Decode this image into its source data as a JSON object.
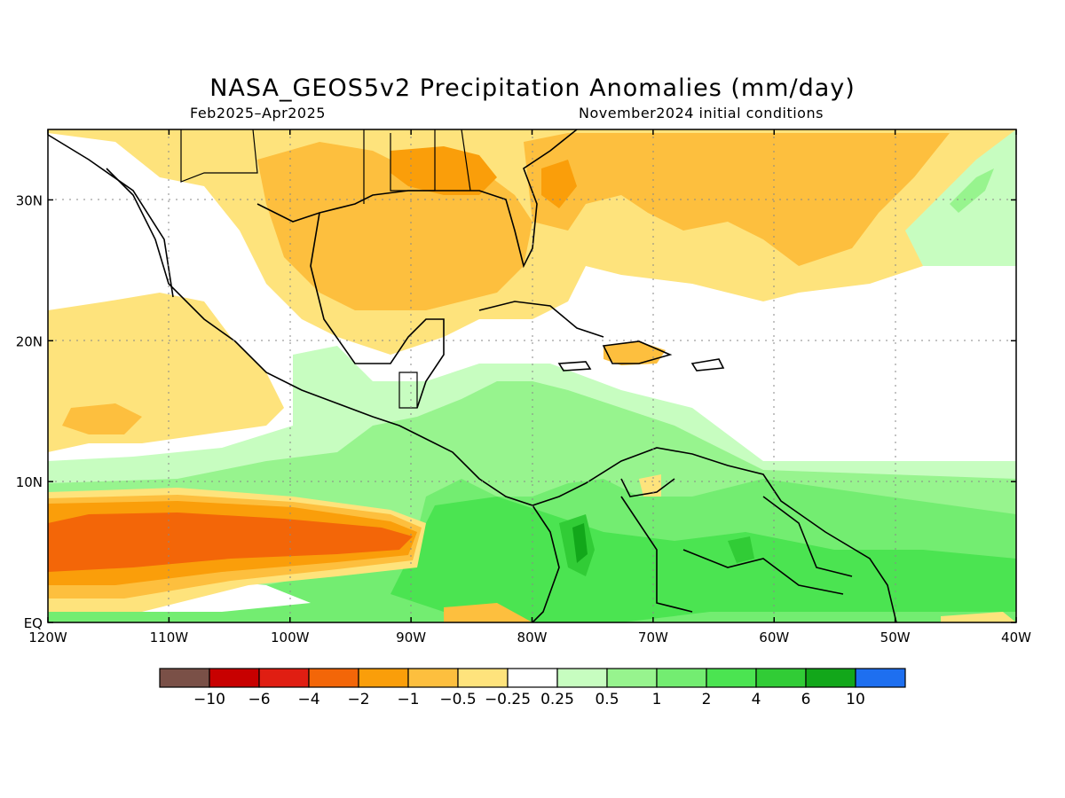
{
  "header": {
    "title": "NASA_GEOS5v2 Precipitation Anomalies (mm/day)",
    "period": "Feb2025–Apr2025",
    "init": "November2024 initial conditions"
  },
  "map": {
    "lon_range": [
      -120,
      -40
    ],
    "lat_range": [
      0,
      35
    ],
    "lon_ticks": [
      {
        "v": -120,
        "label": "120W"
      },
      {
        "v": -110,
        "label": "110W"
      },
      {
        "v": -100,
        "label": "100W"
      },
      {
        "v": -90,
        "label": "90W"
      },
      {
        "v": -80,
        "label": "80W"
      },
      {
        "v": -70,
        "label": "70W"
      },
      {
        "v": -60,
        "label": "60W"
      },
      {
        "v": -50,
        "label": "50W"
      },
      {
        "v": -40,
        "label": "40W"
      }
    ],
    "lat_ticks": [
      {
        "v": 0,
        "label": "EQ"
      },
      {
        "v": 10,
        "label": "10N"
      },
      {
        "v": 20,
        "label": "20N"
      },
      {
        "v": 30,
        "label": "30N"
      }
    ],
    "grid": true
  },
  "colorbar": {
    "colors": [
      "#7a5047",
      "#c80000",
      "#e01e12",
      "#f36608",
      "#fa9e0a",
      "#fdbf3e",
      "#fee37c",
      "#ffffff",
      "#c7fdc0",
      "#97f48e",
      "#73ed71",
      "#4be451",
      "#31cc36",
      "#12a71a",
      "#1e6ff0"
    ],
    "labels": [
      "−10",
      "−6",
      "−4",
      "−2",
      "−1",
      "−0.5",
      "−0.25",
      "0.25",
      "0.5",
      "1",
      "2",
      "4",
      "6",
      "10"
    ]
  }
}
